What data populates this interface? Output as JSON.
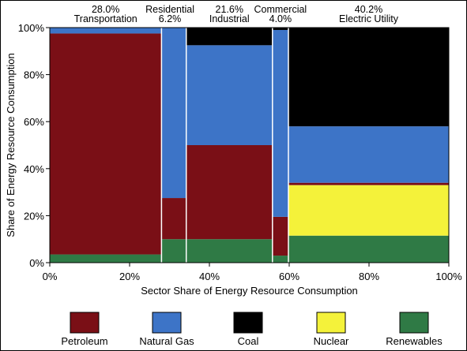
{
  "chart_data": {
    "type": "mosaic",
    "xlabel": "Sector Share of Energy Resource Consumption",
    "ylabel": "Share of Energy Resource Consumption",
    "xlim": [
      0,
      100
    ],
    "ylim": [
      0,
      100
    ],
    "x_ticks": [
      "0%",
      "20%",
      "40%",
      "60%",
      "80%",
      "100%"
    ],
    "y_ticks": [
      "0%",
      "20%",
      "40%",
      "60%",
      "80%",
      "100%"
    ],
    "sectors": [
      {
        "name": "Transportation",
        "share_label": "28.0%",
        "share": 28.0,
        "composition": {
          "Renewables": 3.5,
          "Coal": 0,
          "Petroleum": 94.0,
          "Nuclear": 0,
          "Natural Gas": 2.5
        }
      },
      {
        "name": "Residential",
        "share_label": "6.2%",
        "share": 6.2,
        "composition": {
          "Renewables": 10.0,
          "Coal": 0,
          "Petroleum": 17.5,
          "Nuclear": 0,
          "Natural Gas": 72.5
        }
      },
      {
        "name": "Industrial",
        "share_label": "21.6%",
        "share": 21.6,
        "composition": {
          "Renewables": 10.0,
          "Coal": 7.5,
          "Petroleum": 40.0,
          "Nuclear": 0,
          "Natural Gas": 42.5
        }
      },
      {
        "name": "Commercial",
        "share_label": "4.0%",
        "share": 4.0,
        "composition": {
          "Renewables": 3.0,
          "Coal": 1.0,
          "Petroleum": 16.5,
          "Nuclear": 0,
          "Natural Gas": 79.5
        }
      },
      {
        "name": "Electric Utility",
        "share_label": "40.2%",
        "share": 40.2,
        "composition": {
          "Renewables": 11.5,
          "Coal": 42.0,
          "Petroleum": 1.0,
          "Nuclear": 21.5,
          "Natural Gas": 24.0
        }
      }
    ],
    "stack_order": [
      "Renewables",
      "Nuclear",
      "Petroleum",
      "Natural Gas",
      "Coal"
    ],
    "legend": [
      {
        "name": "Petroleum",
        "color": "#7a0f16"
      },
      {
        "name": "Natural Gas",
        "color": "#3d74c7"
      },
      {
        "name": "Coal",
        "color": "#000000"
      },
      {
        "name": "Nuclear",
        "color": "#f4f23a"
      },
      {
        "name": "Renewables",
        "color": "#2f7a45"
      }
    ],
    "legend_position": "bottom",
    "grid": false
  }
}
